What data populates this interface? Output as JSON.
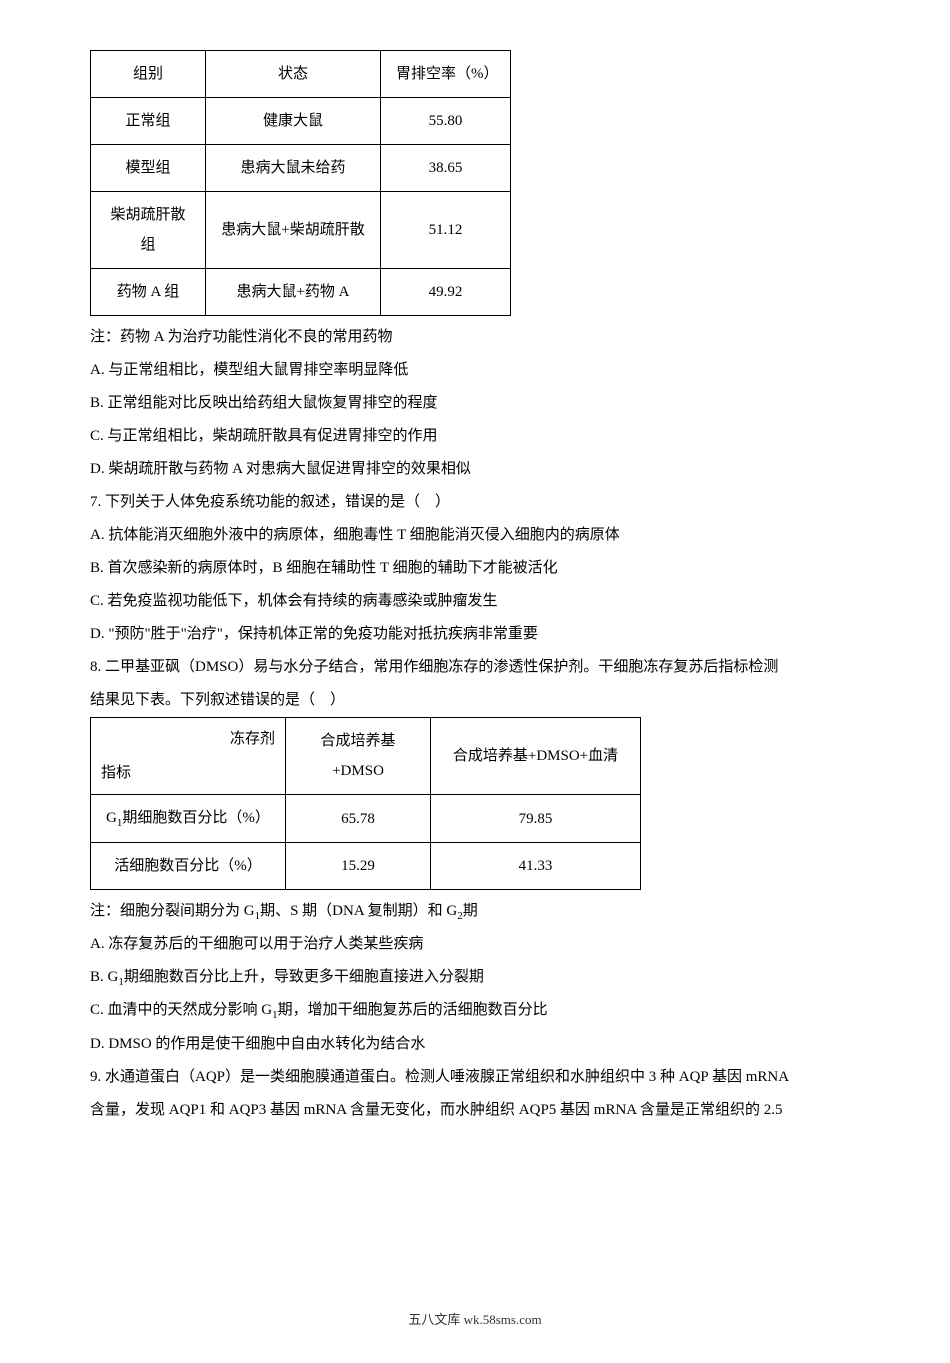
{
  "table1": {
    "header": {
      "c1": "组别",
      "c2": "状态",
      "c3": "胃排空率（%）"
    },
    "rows": [
      {
        "c1": "正常组",
        "c2": "健康大鼠",
        "c3": "55.80"
      },
      {
        "c1": "模型组",
        "c2": "患病大鼠未给药",
        "c3": "38.65"
      },
      {
        "c1": "柴胡疏肝散组",
        "c2": "患病大鼠+柴胡疏肝散",
        "c3": "51.12"
      },
      {
        "c1": "药物 A 组",
        "c2": "患病大鼠+药物 A",
        "c3": "49.92"
      }
    ]
  },
  "note1": "注：药物 A 为治疗功能性消化不良的常用药物",
  "optA_1": "A. 与正常组相比，模型组大鼠胃排空率明显降低",
  "optB_1": "B. 正常组能对比反映出给药组大鼠恢复胃排空的程度",
  "optC_1": "C. 与正常组相比，柴胡疏肝散具有促进胃排空的作用",
  "optD_1": "D. 柴胡疏肝散与药物 A 对患病大鼠促进胃排空的效果相似",
  "q7": "7. 下列关于人体免疫系统功能的叙述，错误的是（　）",
  "q7A": "A. 抗体能消灭细胞外液中的病原体，细胞毒性 T 细胞能消灭侵入细胞内的病原体",
  "q7B": "B. 首次感染新的病原体时，B 细胞在辅助性 T 细胞的辅助下才能被活化",
  "q7C": "C. 若免疫监视功能低下，机体会有持续的病毒感染或肿瘤发生",
  "q7D": "D. \"预防\"胜于\"治疗\"，保持机体正常的免疫功能对抵抗疾病非常重要",
  "q8_1": "8. 二甲基亚砜（DMSO）易与水分子结合，常用作细胞冻存的渗透性保护剂。干细胞冻存复苏后指标检测",
  "q8_2": "结果见下表。下列叙述错误的是（　）",
  "table2": {
    "header_top": "冻存剂",
    "header_bottom": "指标",
    "h2": "合成培养基+DMSO",
    "h3": "合成培养基+DMSO+血清",
    "row1_label_pre": "G",
    "row1_label_sub": "1",
    "row1_label_post": "期细胞数百分比（%）",
    "row1_v1": "65.78",
    "row1_v2": "79.85",
    "row2_label": "活细胞数百分比（%）",
    "row2_v1": "15.29",
    "row2_v2": "41.33"
  },
  "note2_pre": "注：细胞分裂间期分为 G",
  "note2_sub1": "1",
  "note2_mid": "期、S 期（DNA 复制期）和 G",
  "note2_sub2": "2",
  "note2_post": "期",
  "q8A": "A. 冻存复苏后的干细胞可以用于治疗人类某些疾病",
  "q8B_pre": "B. G",
  "q8B_sub": "1",
  "q8B_post": "期细胞数百分比上升，导致更多干细胞直接进入分裂期",
  "q8C_pre": "C. 血清中的天然成分影响 G",
  "q8C_sub": "1",
  "q8C_post": "期，增加干细胞复苏后的活细胞数百分比",
  "q8D": "D. DMSO 的作用是使干细胞中自由水转化为结合水",
  "q9_1": "9. 水通道蛋白（AQP）是一类细胞膜通道蛋白。检测人唾液腺正常组织和水肿组织中 3 种 AQP 基因 mRNA",
  "q9_2": "含量，发现 AQP1 和 AQP3 基因 mRNA 含量无变化，而水肿组织 AQP5 基因 mRNA 含量是正常组织的 2.5",
  "footer": "五八文库 wk.58sms.com"
}
